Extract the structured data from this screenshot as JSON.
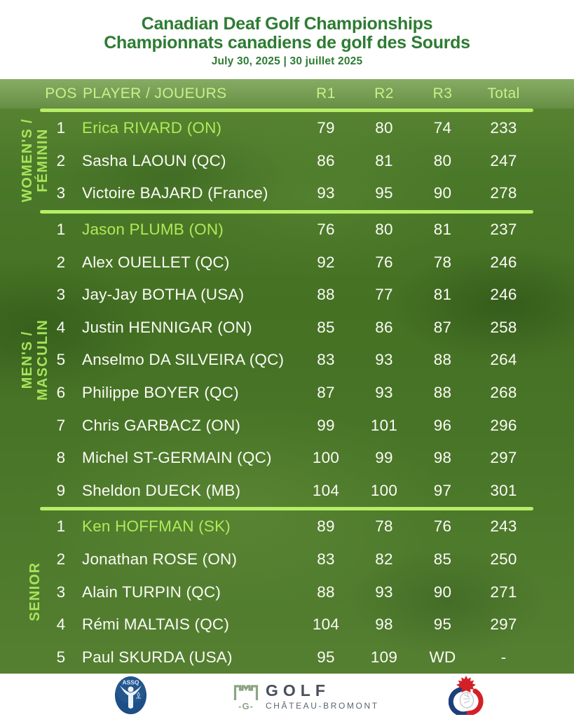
{
  "header": {
    "title_en": "Canadian Deaf Golf Championships",
    "title_fr": "Championnats canadiens de golf des Sourds",
    "date": "July 30, 2025 | 30 juillet 2025"
  },
  "columns": {
    "pos": "POS",
    "player": "PLAYER / JOUEURS",
    "r1": "R1",
    "r2": "R2",
    "r3": "R3",
    "total": "Total"
  },
  "sections": [
    {
      "id": "womens",
      "label": [
        "WOMEN'S /",
        "FÉMININ"
      ],
      "rows": [
        {
          "pos": "1",
          "player": "Erica RIVARD (ON)",
          "r1": "79",
          "r2": "80",
          "r3": "74",
          "total": "233",
          "highlight": true
        },
        {
          "pos": "2",
          "player": "Sasha LAOUN (QC)",
          "r1": "86",
          "r2": "81",
          "r3": "80",
          "total": "247",
          "highlight": false
        },
        {
          "pos": "3",
          "player": "Victoire BAJARD (France)",
          "r1": "93",
          "r2": "95",
          "r3": "90",
          "total": "278",
          "highlight": false
        }
      ]
    },
    {
      "id": "mens",
      "label": [
        "MEN'S /",
        "MASCULIN"
      ],
      "rows": [
        {
          "pos": "1",
          "player": "Jason PLUMB (ON)",
          "r1": "76",
          "r2": "80",
          "r3": "81",
          "total": "237",
          "highlight": true
        },
        {
          "pos": "2",
          "player": "Alex OUELLET (QC)",
          "r1": "92",
          "r2": "76",
          "r3": "78",
          "total": "246",
          "highlight": false
        },
        {
          "pos": "3",
          "player": "Jay-Jay BOTHA (USA)",
          "r1": "88",
          "r2": "77",
          "r3": "81",
          "total": "246",
          "highlight": false
        },
        {
          "pos": "4",
          "player": "Justin HENNIGAR (ON)",
          "r1": "85",
          "r2": "86",
          "r3": "87",
          "total": "258",
          "highlight": false
        },
        {
          "pos": "5",
          "player": "Anselmo DA SILVEIRA (QC)",
          "r1": "83",
          "r2": "93",
          "r3": "88",
          "total": "264",
          "highlight": false
        },
        {
          "pos": "6",
          "player": "Philippe BOYER (QC)",
          "r1": "87",
          "r2": "93",
          "r3": "88",
          "total": "268",
          "highlight": false
        },
        {
          "pos": "7",
          "player": "Chris GARBACZ (ON)",
          "r1": "99",
          "r2": "101",
          "r3": "96",
          "total": "296",
          "highlight": false
        },
        {
          "pos": "8",
          "player": "Michel ST-GERMAIN (QC)",
          "r1": "100",
          "r2": "99",
          "r3": "98",
          "total": "297",
          "highlight": false
        },
        {
          "pos": "9",
          "player": "Sheldon DUECK (MB)",
          "r1": "104",
          "r2": "100",
          "r3": "97",
          "total": "301",
          "highlight": false
        }
      ]
    },
    {
      "id": "senior",
      "label": [
        "SENIOR"
      ],
      "rows": [
        {
          "pos": "1",
          "player": "Ken HOFFMAN (SK)",
          "r1": "89",
          "r2": "78",
          "r3": "76",
          "total": "243",
          "highlight": true
        },
        {
          "pos": "2",
          "player": "Jonathan ROSE (ON)",
          "r1": "83",
          "r2": "82",
          "r3": "85",
          "total": "250",
          "highlight": false
        },
        {
          "pos": "3",
          "player": "Alain TURPIN (QC)",
          "r1": "88",
          "r2": "93",
          "r3": "90",
          "total": "271",
          "highlight": false
        },
        {
          "pos": "4",
          "player": "Rémi MALTAIS (QC)",
          "r1": "104",
          "r2": "98",
          "r3": "95",
          "total": "297",
          "highlight": false
        },
        {
          "pos": "5",
          "player": "Paul SKURDA (USA)",
          "r1": "95",
          "r2": "109",
          "r3": "WD",
          "total": "-",
          "highlight": false
        }
      ]
    }
  ],
  "footer": {
    "assq": "ASSQ",
    "golf": "GOLF",
    "g": "-G-",
    "chateau": "CHÂTEAU-BROMONT"
  },
  "colors": {
    "title_green": "#2e7b33",
    "board_green": "#487427",
    "accent_light_green": "#b6ef66",
    "highlight_name_green": "#aeea58",
    "row_text": "#fbfbf6",
    "assq_navy": "#1d4e86",
    "cdsa_red": "#d32027",
    "cdsa_blue": "#1d3f7a",
    "golf_sage": "#8aa584",
    "golf_slate": "#47505c"
  }
}
